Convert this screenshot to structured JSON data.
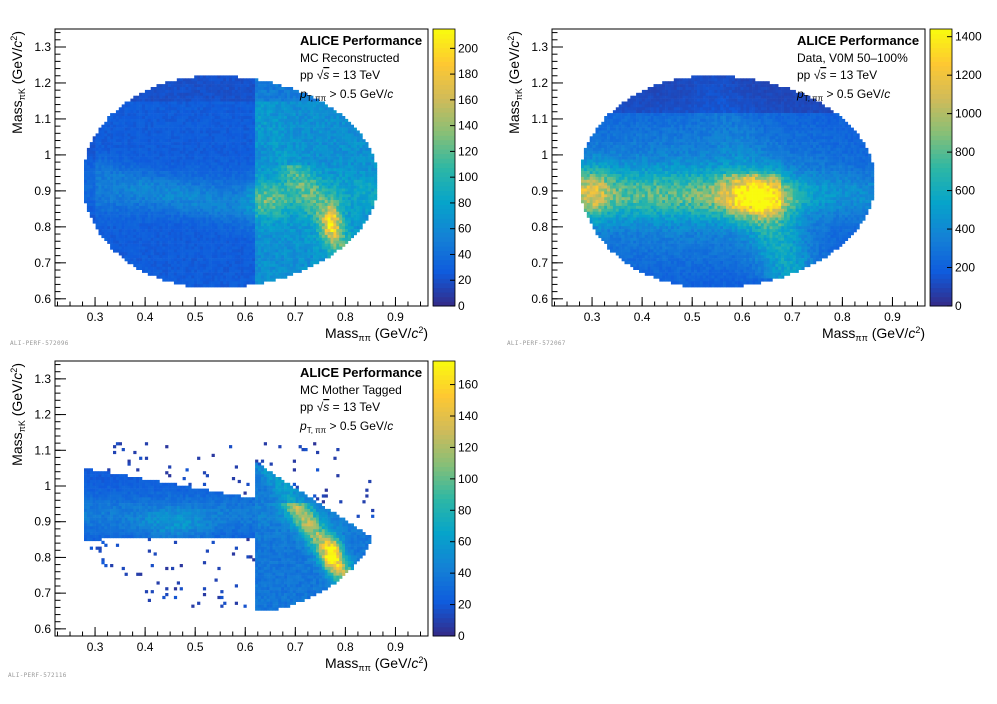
{
  "chart_data": [
    {
      "type": "heatmap",
      "id": "p1",
      "header": "ALICE Performance",
      "lines": [
        "MC Reconstructed",
        "pp √s = 13 TeV",
        "pT, ππ > 0.5 GeV/c"
      ],
      "xlabel": "Mass_ππ (GeV/c²)",
      "ylabel": "Mass_πK (GeV/c²)",
      "xlim": [
        0.22,
        0.965
      ],
      "ylim": [
        0.58,
        1.35
      ],
      "x_ticks": [
        0.3,
        0.4,
        0.5,
        0.6,
        0.7,
        0.8,
        0.9
      ],
      "y_ticks": [
        0.6,
        0.7,
        0.8,
        0.9,
        1.0,
        1.1,
        1.2,
        1.3
      ],
      "x_tick_labels": [
        "0.3",
        "0.4",
        "0.5",
        "0.6",
        "0.7",
        "0.8",
        "0.9"
      ],
      "y_tick_labels": [
        "0.6",
        "0.7",
        "0.8",
        "0.9",
        "1",
        "1.1",
        "1.2",
        "1.3"
      ],
      "zlim": [
        0,
        215
      ],
      "z_ticks": [
        0,
        20,
        40,
        60,
        80,
        100,
        120,
        140,
        160,
        180,
        200
      ],
      "z_tick_labels": [
        "0",
        "20",
        "40",
        "60",
        "80",
        "100",
        "120",
        "140",
        "160",
        "180",
        "200"
      ],
      "region": "ellipse",
      "colors": [
        "#352a87",
        "#0f5cdd",
        "#1481d6",
        "#06a4ca",
        "#2eb7a4",
        "#87bf77",
        "#d1bb59",
        "#fec832",
        "#f9fb0e"
      ],
      "footer_id": "ALI-PERF-572096"
    },
    {
      "type": "heatmap",
      "id": "p2",
      "header": "ALICE Performance",
      "lines": [
        "Data, V0M 50–100%",
        "pp √s = 13 TeV",
        "pT, ππ > 0.5 GeV/c"
      ],
      "xlabel": "Mass_ππ (GeV/c²)",
      "ylabel": "Mass_πK (GeV/c²)",
      "xlim": [
        0.22,
        0.965
      ],
      "ylim": [
        0.58,
        1.35
      ],
      "x_ticks": [
        0.3,
        0.4,
        0.5,
        0.6,
        0.7,
        0.8,
        0.9
      ],
      "y_ticks": [
        0.6,
        0.7,
        0.8,
        0.9,
        1.0,
        1.1,
        1.2,
        1.3
      ],
      "x_tick_labels": [
        "0.3",
        "0.4",
        "0.5",
        "0.6",
        "0.7",
        "0.8",
        "0.9"
      ],
      "y_tick_labels": [
        "0.6",
        "0.7",
        "0.8",
        "0.9",
        "1",
        "1.1",
        "1.2",
        "1.3"
      ],
      "zlim": [
        0,
        1440
      ],
      "z_ticks": [
        0,
        200,
        400,
        600,
        800,
        1000,
        1200,
        1400
      ],
      "z_tick_labels": [
        "0",
        "200",
        "400",
        "600",
        "800",
        "1000",
        "1200",
        "1400"
      ],
      "region": "ellipse",
      "colors": [
        "#352a87",
        "#0f5cdd",
        "#1481d6",
        "#06a4ca",
        "#2eb7a4",
        "#87bf77",
        "#d1bb59",
        "#fec832",
        "#f9fb0e"
      ],
      "footer_id": "ALI-PERF-572067"
    },
    {
      "type": "heatmap",
      "id": "p3",
      "header": "ALICE Performance",
      "lines": [
        "MC Mother Tagged",
        "pp √s = 13 TeV",
        "pT, ππ > 0.5 GeV/c"
      ],
      "xlabel": "Mass_ππ (GeV/c²)",
      "ylabel": "Mass_πK (GeV/c²)",
      "xlim": [
        0.22,
        0.965
      ],
      "ylim": [
        0.58,
        1.35
      ],
      "x_ticks": [
        0.3,
        0.4,
        0.5,
        0.6,
        0.7,
        0.8,
        0.9
      ],
      "y_ticks": [
        0.6,
        0.7,
        0.8,
        0.9,
        1.0,
        1.1,
        1.2,
        1.3
      ],
      "x_tick_labels": [
        "0.3",
        "0.4",
        "0.5",
        "0.6",
        "0.7",
        "0.8",
        "0.9"
      ],
      "y_tick_labels": [
        "0.6",
        "0.7",
        "0.8",
        "0.9",
        "1",
        "1.1",
        "1.2",
        "1.3"
      ],
      "zlim": [
        0,
        175
      ],
      "z_ticks": [
        0,
        20,
        40,
        60,
        80,
        100,
        120,
        140,
        160
      ],
      "z_tick_labels": [
        "0",
        "20",
        "40",
        "60",
        "80",
        "100",
        "120",
        "140",
        "160"
      ],
      "region": "arrow",
      "colors": [
        "#352a87",
        "#0f5cdd",
        "#1481d6",
        "#06a4ca",
        "#2eb7a4",
        "#87bf77",
        "#d1bb59",
        "#fec832",
        "#f9fb0e"
      ],
      "footer_id": "ALI-PERF-572116"
    }
  ]
}
